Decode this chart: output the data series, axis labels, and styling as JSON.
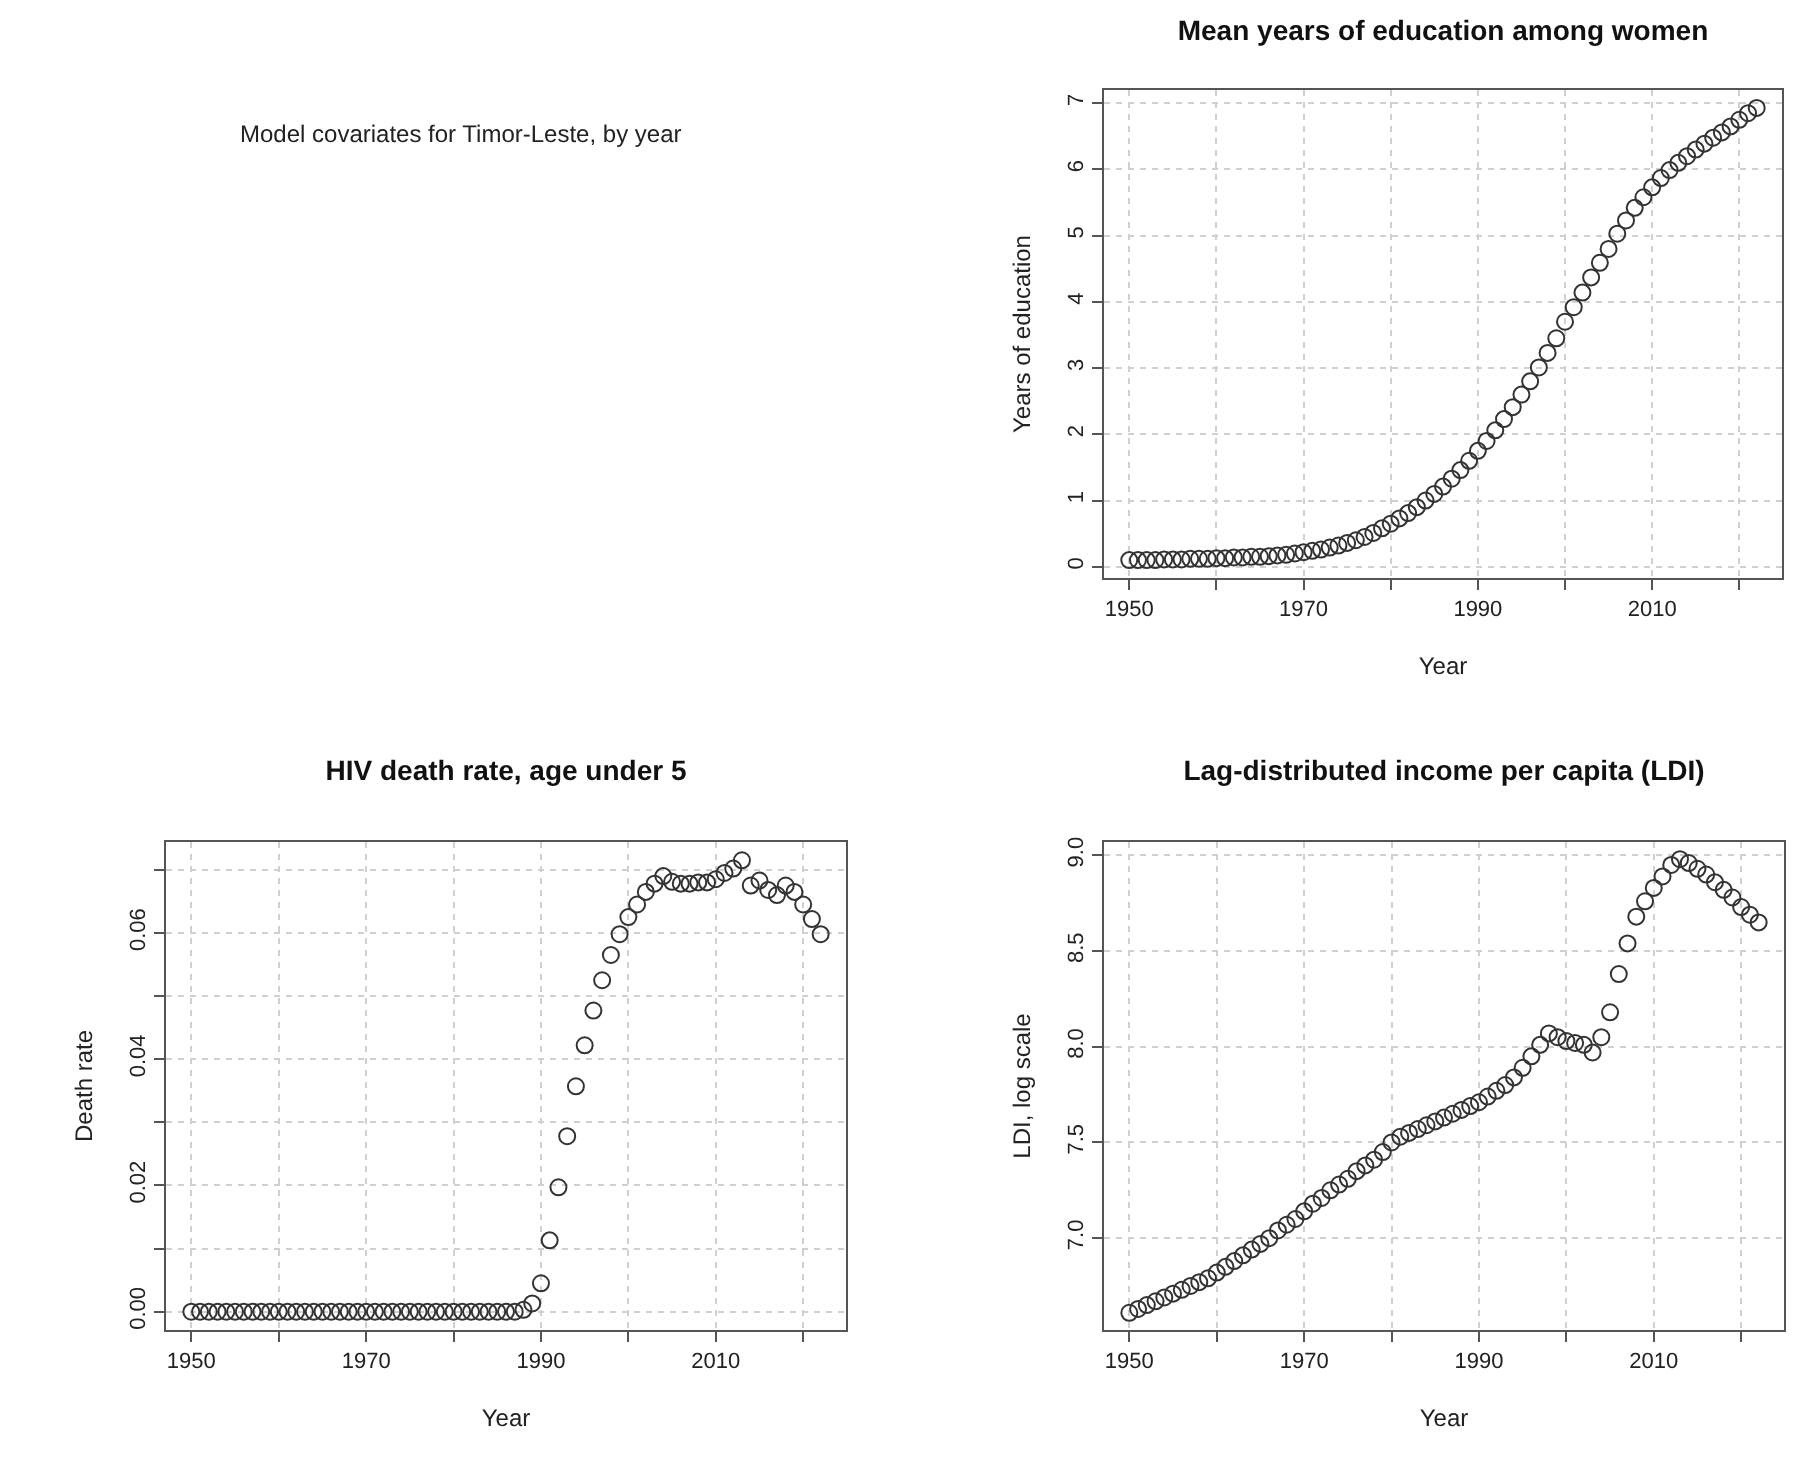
{
  "chart_data": [
    {
      "type": "other",
      "title": "Model covariates for Timor-Leste, by year"
    },
    {
      "type": "scatter",
      "title": "Mean years of education among women",
      "xlabel": "Year",
      "ylabel": "Years of education",
      "marker": "circle",
      "grid": true,
      "color": "#333333",
      "x": [
        1950,
        1951,
        1952,
        1953,
        1954,
        1955,
        1956,
        1957,
        1958,
        1959,
        1960,
        1961,
        1962,
        1963,
        1964,
        1965,
        1966,
        1967,
        1968,
        1969,
        1970,
        1971,
        1972,
        1973,
        1974,
        1975,
        1976,
        1977,
        1978,
        1979,
        1980,
        1981,
        1982,
        1983,
        1984,
        1985,
        1986,
        1987,
        1988,
        1989,
        1990,
        1991,
        1992,
        1993,
        1994,
        1995,
        1996,
        1997,
        1998,
        1999,
        2000,
        2001,
        2002,
        2003,
        2004,
        2005,
        2006,
        2007,
        2008,
        2009,
        2010,
        2011,
        2012,
        2013,
        2014,
        2015,
        2016,
        2017,
        2018,
        2019,
        2020,
        2021,
        2022
      ],
      "values": [
        0.1,
        0.1,
        0.1,
        0.1,
        0.11,
        0.11,
        0.11,
        0.12,
        0.12,
        0.12,
        0.13,
        0.13,
        0.14,
        0.14,
        0.15,
        0.15,
        0.16,
        0.17,
        0.18,
        0.2,
        0.22,
        0.24,
        0.26,
        0.29,
        0.32,
        0.36,
        0.4,
        0.45,
        0.51,
        0.58,
        0.65,
        0.73,
        0.81,
        0.9,
        1.0,
        1.1,
        1.21,
        1.33,
        1.46,
        1.6,
        1.75,
        1.9,
        2.06,
        2.23,
        2.41,
        2.6,
        2.8,
        3.01,
        3.23,
        3.45,
        3.7,
        3.92,
        4.14,
        4.37,
        4.59,
        4.8,
        5.03,
        5.23,
        5.42,
        5.58,
        5.73,
        5.87,
        5.99,
        6.1,
        6.2,
        6.3,
        6.39,
        6.48,
        6.56,
        6.65,
        6.75,
        6.85,
        6.93
      ],
      "xlim": [
        1947.1,
        2024.9
      ],
      "xticks": [
        1950,
        {
          "value": 1960,
          "label": null
        },
        1970,
        {
          "value": 1980,
          "label": null
        },
        1990,
        {
          "value": 2000,
          "label": null
        },
        2010,
        {
          "value": 2020,
          "label": null
        }
      ],
      "ylim": [
        -0.17,
        7.2
      ],
      "yticks": [
        0,
        1,
        2,
        3,
        4,
        5,
        6,
        7
      ]
    },
    {
      "type": "scatter",
      "title": "HIV death rate, age under 5",
      "xlabel": "Year",
      "ylabel": "Death rate",
      "marker": "circle",
      "grid": true,
      "color": "#333333",
      "x": [
        1950,
        1951,
        1952,
        1953,
        1954,
        1955,
        1956,
        1957,
        1958,
        1959,
        1960,
        1961,
        1962,
        1963,
        1964,
        1965,
        1966,
        1967,
        1968,
        1969,
        1970,
        1971,
        1972,
        1973,
        1974,
        1975,
        1976,
        1977,
        1978,
        1979,
        1980,
        1981,
        1982,
        1983,
        1984,
        1985,
        1986,
        1987,
        1988,
        1989,
        1990,
        1991,
        1992,
        1993,
        1994,
        1995,
        1996,
        1997,
        1998,
        1999,
        2000,
        2001,
        2002,
        2003,
        2004,
        2005,
        2006,
        2007,
        2008,
        2009,
        2010,
        2011,
        2012,
        2013,
        2014,
        2015,
        2016,
        2017,
        2018,
        2019,
        2020,
        2021,
        2022
      ],
      "values": [
        0,
        0,
        0,
        0,
        0,
        0,
        0,
        0,
        0,
        0,
        0,
        0,
        0,
        0,
        0,
        0,
        0,
        0,
        0,
        0,
        0,
        0,
        0,
        0,
        0,
        0,
        0,
        0,
        0,
        0,
        0,
        0,
        0,
        0,
        0,
        0,
        0,
        0,
        0.0003,
        0.0013,
        0.0045,
        0.0113,
        0.0197,
        0.0278,
        0.0357,
        0.0422,
        0.0477,
        0.0525,
        0.0565,
        0.0598,
        0.0625,
        0.0645,
        0.0665,
        0.0678,
        0.069,
        0.0681,
        0.0678,
        0.0678,
        0.068,
        0.068,
        0.0685,
        0.0695,
        0.0702,
        0.0715,
        0.0675,
        0.0683,
        0.0668,
        0.066,
        0.0675,
        0.0665,
        0.0645,
        0.0622,
        0.0598
      ],
      "xlim": [
        1947.1,
        2024.9
      ],
      "xticks": [
        1950,
        {
          "value": 1960,
          "label": null
        },
        1970,
        {
          "value": 1980,
          "label": null
        },
        1990,
        {
          "value": 2000,
          "label": null
        },
        2010,
        {
          "value": 2020,
          "label": null
        }
      ],
      "ylim": [
        -0.0029,
        0.0744
      ],
      "yticks": [
        {
          "value": 0,
          "label": "0.00"
        },
        {
          "value": 0.01,
          "label": null
        },
        0.02,
        {
          "value": 0.03,
          "label": null
        },
        0.04,
        {
          "value": 0.05,
          "label": null
        },
        0.06,
        {
          "value": 0.07,
          "label": null
        }
      ]
    },
    {
      "type": "scatter",
      "title": "Lag-distributed income per capita (LDI)",
      "xlabel": "Year",
      "ylabel": "LDI, log scale",
      "marker": "circle",
      "grid": true,
      "color": "#333333",
      "x": [
        1950,
        1951,
        1952,
        1953,
        1954,
        1955,
        1956,
        1957,
        1958,
        1959,
        1960,
        1961,
        1962,
        1963,
        1964,
        1965,
        1966,
        1967,
        1968,
        1969,
        1970,
        1971,
        1972,
        1973,
        1974,
        1975,
        1976,
        1977,
        1978,
        1979,
        1980,
        1981,
        1982,
        1983,
        1984,
        1985,
        1986,
        1987,
        1988,
        1989,
        1990,
        1991,
        1992,
        1993,
        1994,
        1995,
        1996,
        1997,
        1998,
        1999,
        2000,
        2001,
        2002,
        2003,
        2004,
        2005,
        2006,
        2007,
        2008,
        2009,
        2010,
        2011,
        2012,
        2013,
        2014,
        2015,
        2016,
        2017,
        2018,
        2019,
        2020,
        2021,
        2022
      ],
      "values": [
        6.61,
        6.63,
        6.65,
        6.67,
        6.69,
        6.71,
        6.73,
        6.75,
        6.77,
        6.79,
        6.82,
        6.85,
        6.88,
        6.91,
        6.94,
        6.97,
        7.0,
        7.04,
        7.07,
        7.1,
        7.14,
        7.18,
        7.21,
        7.25,
        7.28,
        7.31,
        7.35,
        7.38,
        7.41,
        7.45,
        7.5,
        7.53,
        7.55,
        7.57,
        7.59,
        7.61,
        7.63,
        7.65,
        7.67,
        7.69,
        7.71,
        7.74,
        7.77,
        7.8,
        7.84,
        7.89,
        7.95,
        8.01,
        8.07,
        8.05,
        8.03,
        8.02,
        8.01,
        7.97,
        8.05,
        8.18,
        8.38,
        8.54,
        8.68,
        8.76,
        8.83,
        8.89,
        8.95,
        8.98,
        8.96,
        8.93,
        8.9,
        8.86,
        8.82,
        8.78,
        8.73,
        8.69,
        8.65
      ],
      "xlim": [
        1947.1,
        2024.9
      ],
      "xticks": [
        1950,
        {
          "value": 1960,
          "label": null
        },
        1970,
        {
          "value": 1980,
          "label": null
        },
        1990,
        {
          "value": 2000,
          "label": null
        },
        2010,
        {
          "value": 2020,
          "label": null
        }
      ],
      "ylim": [
        6.52,
        9.07
      ],
      "yticks": [
        {
          "value": 7,
          "label": "7.0"
        },
        7.5,
        {
          "value": 8,
          "label": "8.0"
        },
        8.5,
        {
          "value": 9,
          "label": "9.0"
        }
      ]
    }
  ]
}
